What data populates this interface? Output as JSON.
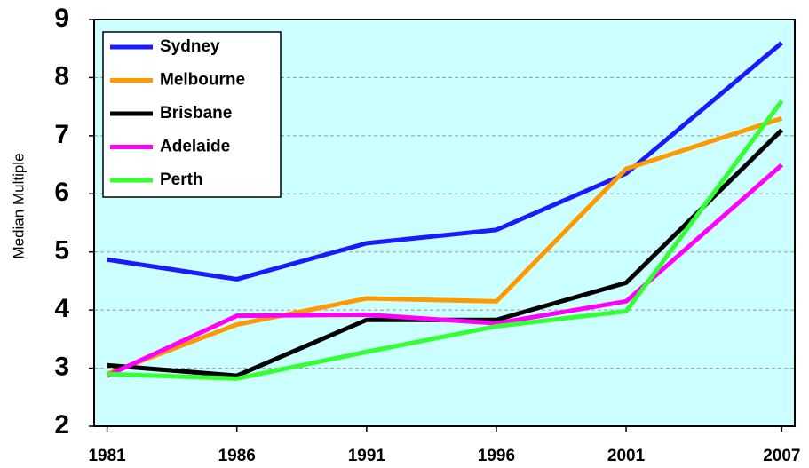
{
  "chart_data": {
    "type": "line",
    "y_label": "Median Multiple",
    "x": [
      1981,
      1986,
      1991,
      1996,
      2001,
      2007
    ],
    "series": [
      {
        "name": "Sydney",
        "color": "#1a1aff",
        "values": [
          4.87,
          4.53,
          5.15,
          5.38,
          6.35,
          8.6
        ]
      },
      {
        "name": "Melbourne",
        "color": "#ff9900",
        "values": [
          2.9,
          3.75,
          4.2,
          4.15,
          6.43,
          7.3
        ]
      },
      {
        "name": "Brisbane",
        "color": "#000000",
        "values": [
          3.05,
          2.87,
          3.83,
          3.83,
          4.47,
          7.1
        ]
      },
      {
        "name": "Adelaide",
        "color": "#ff00ff",
        "values": [
          2.87,
          3.9,
          3.92,
          3.77,
          4.15,
          6.5
        ]
      },
      {
        "name": "Perth",
        "color": "#33ff33",
        "values": [
          2.9,
          2.82,
          3.28,
          3.72,
          3.98,
          7.6
        ]
      }
    ],
    "xlim": [
      1980.5,
      2007.5
    ],
    "xticks": [
      1981,
      1986,
      1991,
      1996,
      2001,
      2007
    ],
    "ylim": [
      2,
      9
    ],
    "yticks": [
      2,
      3,
      4,
      5,
      6,
      7,
      8,
      9
    ],
    "grid": true,
    "legend": "upper-left",
    "background": "#ccffff"
  }
}
